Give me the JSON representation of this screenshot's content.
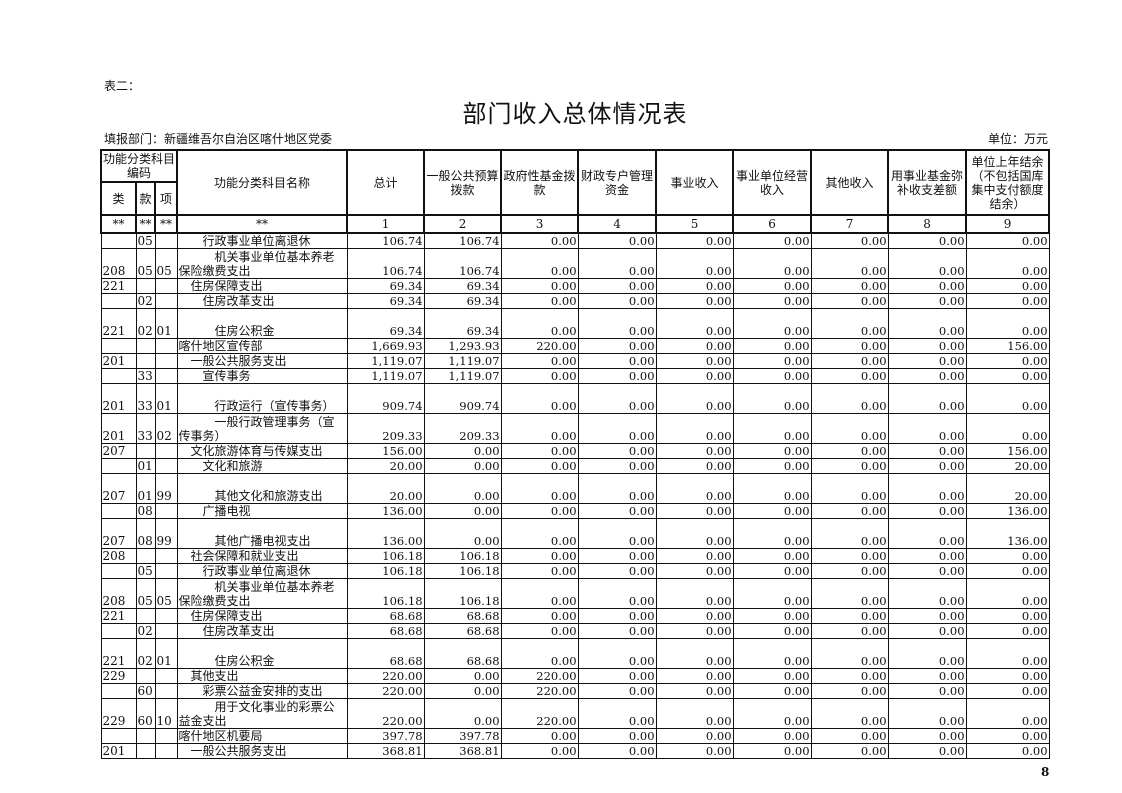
{
  "doc": {
    "label": "表二：",
    "title": "部门收入总体情况表",
    "dept": "填报部门：新疆维吾尔自治区喀什地区党委",
    "unit": "单位：万元",
    "page_number": "8"
  },
  "header": {
    "code_group": "功能分类科目编码",
    "lei": "类",
    "kuan": "款",
    "xiang": "项",
    "name": "功能分类科目名称",
    "columns": [
      "总计",
      "一般公共预算拨款",
      "政府性基金拨款",
      "财政专户管理资金",
      "事业收入",
      "事业单位经营收入",
      "其他收入",
      "用事业基金弥补收支差额",
      "单位上年结余（不包括国库集中支付额度结余）"
    ],
    "index_row": [
      "**",
      "**",
      "**",
      "**",
      "1",
      "2",
      "3",
      "4",
      "5",
      "6",
      "7",
      "8",
      "9"
    ]
  },
  "rows": [
    {
      "lei": "",
      "kuan": "05",
      "xiang": "",
      "name": "行政事业单位离退休",
      "values": [
        "106.74",
        "106.74",
        "0.00",
        "0.00",
        "0.00",
        "0.00",
        "0.00",
        "0.00",
        "0.00"
      ]
    },
    {
      "lei": "208",
      "kuan": "05",
      "xiang": "05",
      "name": "机关事业单位基本养老保险缴费支出",
      "values": [
        "106.74",
        "106.74",
        "0.00",
        "0.00",
        "0.00",
        "0.00",
        "0.00",
        "0.00",
        "0.00"
      ]
    },
    {
      "lei": "221",
      "kuan": "",
      "xiang": "",
      "name": "住房保障支出",
      "values": [
        "69.34",
        "69.34",
        "0.00",
        "0.00",
        "0.00",
        "0.00",
        "0.00",
        "0.00",
        "0.00"
      ]
    },
    {
      "lei": "",
      "kuan": "02",
      "xiang": "",
      "name": "住房改革支出",
      "values": [
        "69.34",
        "69.34",
        "0.00",
        "0.00",
        "0.00",
        "0.00",
        "0.00",
        "0.00",
        "0.00"
      ]
    },
    {
      "lei": "221",
      "kuan": "02",
      "xiang": "01",
      "name": "住房公积金",
      "values": [
        "69.34",
        "69.34",
        "0.00",
        "0.00",
        "0.00",
        "0.00",
        "0.00",
        "0.00",
        "0.00"
      ]
    },
    {
      "lei": "",
      "kuan": "",
      "xiang": "",
      "name": "喀什地区宣传部",
      "values": [
        "1,669.93",
        "1,293.93",
        "220.00",
        "0.00",
        "0.00",
        "0.00",
        "0.00",
        "0.00",
        "156.00"
      ]
    },
    {
      "lei": "201",
      "kuan": "",
      "xiang": "",
      "name": "一般公共服务支出",
      "values": [
        "1,119.07",
        "1,119.07",
        "0.00",
        "0.00",
        "0.00",
        "0.00",
        "0.00",
        "0.00",
        "0.00"
      ]
    },
    {
      "lei": "",
      "kuan": "33",
      "xiang": "",
      "name": "宣传事务",
      "values": [
        "1,119.07",
        "1,119.07",
        "0.00",
        "0.00",
        "0.00",
        "0.00",
        "0.00",
        "0.00",
        "0.00"
      ]
    },
    {
      "lei": "201",
      "kuan": "33",
      "xiang": "01",
      "name": "行政运行（宣传事务）",
      "values": [
        "909.74",
        "909.74",
        "0.00",
        "0.00",
        "0.00",
        "0.00",
        "0.00",
        "0.00",
        "0.00"
      ]
    },
    {
      "lei": "201",
      "kuan": "33",
      "xiang": "02",
      "name": "一般行政管理事务（宣传事务）",
      "values": [
        "209.33",
        "209.33",
        "0.00",
        "0.00",
        "0.00",
        "0.00",
        "0.00",
        "0.00",
        "0.00"
      ]
    },
    {
      "lei": "207",
      "kuan": "",
      "xiang": "",
      "name": "文化旅游体育与传媒支出",
      "values": [
        "156.00",
        "0.00",
        "0.00",
        "0.00",
        "0.00",
        "0.00",
        "0.00",
        "0.00",
        "156.00"
      ]
    },
    {
      "lei": "",
      "kuan": "01",
      "xiang": "",
      "name": "文化和旅游",
      "values": [
        "20.00",
        "0.00",
        "0.00",
        "0.00",
        "0.00",
        "0.00",
        "0.00",
        "0.00",
        "20.00"
      ]
    },
    {
      "lei": "207",
      "kuan": "01",
      "xiang": "99",
      "name": "其他文化和旅游支出",
      "values": [
        "20.00",
        "0.00",
        "0.00",
        "0.00",
        "0.00",
        "0.00",
        "0.00",
        "0.00",
        "20.00"
      ]
    },
    {
      "lei": "",
      "kuan": "08",
      "xiang": "",
      "name": "广播电视",
      "values": [
        "136.00",
        "0.00",
        "0.00",
        "0.00",
        "0.00",
        "0.00",
        "0.00",
        "0.00",
        "136.00"
      ]
    },
    {
      "lei": "207",
      "kuan": "08",
      "xiang": "99",
      "name": "其他广播电视支出",
      "values": [
        "136.00",
        "0.00",
        "0.00",
        "0.00",
        "0.00",
        "0.00",
        "0.00",
        "0.00",
        "136.00"
      ]
    },
    {
      "lei": "208",
      "kuan": "",
      "xiang": "",
      "name": "社会保障和就业支出",
      "values": [
        "106.18",
        "106.18",
        "0.00",
        "0.00",
        "0.00",
        "0.00",
        "0.00",
        "0.00",
        "0.00"
      ]
    },
    {
      "lei": "",
      "kuan": "05",
      "xiang": "",
      "name": "行政事业单位离退休",
      "values": [
        "106.18",
        "106.18",
        "0.00",
        "0.00",
        "0.00",
        "0.00",
        "0.00",
        "0.00",
        "0.00"
      ]
    },
    {
      "lei": "208",
      "kuan": "05",
      "xiang": "05",
      "name": "机关事业单位基本养老保险缴费支出",
      "values": [
        "106.18",
        "106.18",
        "0.00",
        "0.00",
        "0.00",
        "0.00",
        "0.00",
        "0.00",
        "0.00"
      ]
    },
    {
      "lei": "221",
      "kuan": "",
      "xiang": "",
      "name": "住房保障支出",
      "values": [
        "68.68",
        "68.68",
        "0.00",
        "0.00",
        "0.00",
        "0.00",
        "0.00",
        "0.00",
        "0.00"
      ]
    },
    {
      "lei": "",
      "kuan": "02",
      "xiang": "",
      "name": "住房改革支出",
      "values": [
        "68.68",
        "68.68",
        "0.00",
        "0.00",
        "0.00",
        "0.00",
        "0.00",
        "0.00",
        "0.00"
      ]
    },
    {
      "lei": "221",
      "kuan": "02",
      "xiang": "01",
      "name": "住房公积金",
      "values": [
        "68.68",
        "68.68",
        "0.00",
        "0.00",
        "0.00",
        "0.00",
        "0.00",
        "0.00",
        "0.00"
      ]
    },
    {
      "lei": "229",
      "kuan": "",
      "xiang": "",
      "name": "其他支出",
      "values": [
        "220.00",
        "0.00",
        "220.00",
        "0.00",
        "0.00",
        "0.00",
        "0.00",
        "0.00",
        "0.00"
      ]
    },
    {
      "lei": "",
      "kuan": "60",
      "xiang": "",
      "name": "彩票公益金安排的支出",
      "values": [
        "220.00",
        "0.00",
        "220.00",
        "0.00",
        "0.00",
        "0.00",
        "0.00",
        "0.00",
        "0.00"
      ]
    },
    {
      "lei": "229",
      "kuan": "60",
      "xiang": "10",
      "name": "用于文化事业的彩票公益金支出",
      "values": [
        "220.00",
        "0.00",
        "220.00",
        "0.00",
        "0.00",
        "0.00",
        "0.00",
        "0.00",
        "0.00"
      ]
    },
    {
      "lei": "",
      "kuan": "",
      "xiang": "",
      "name": "喀什地区机要局",
      "values": [
        "397.78",
        "397.78",
        "0.00",
        "0.00",
        "0.00",
        "0.00",
        "0.00",
        "0.00",
        "0.00"
      ]
    },
    {
      "lei": "201",
      "kuan": "",
      "xiang": "",
      "name": "一般公共服务支出",
      "values": [
        "368.81",
        "368.81",
        "0.00",
        "0.00",
        "0.00",
        "0.00",
        "0.00",
        "0.00",
        "0.00"
      ]
    }
  ]
}
